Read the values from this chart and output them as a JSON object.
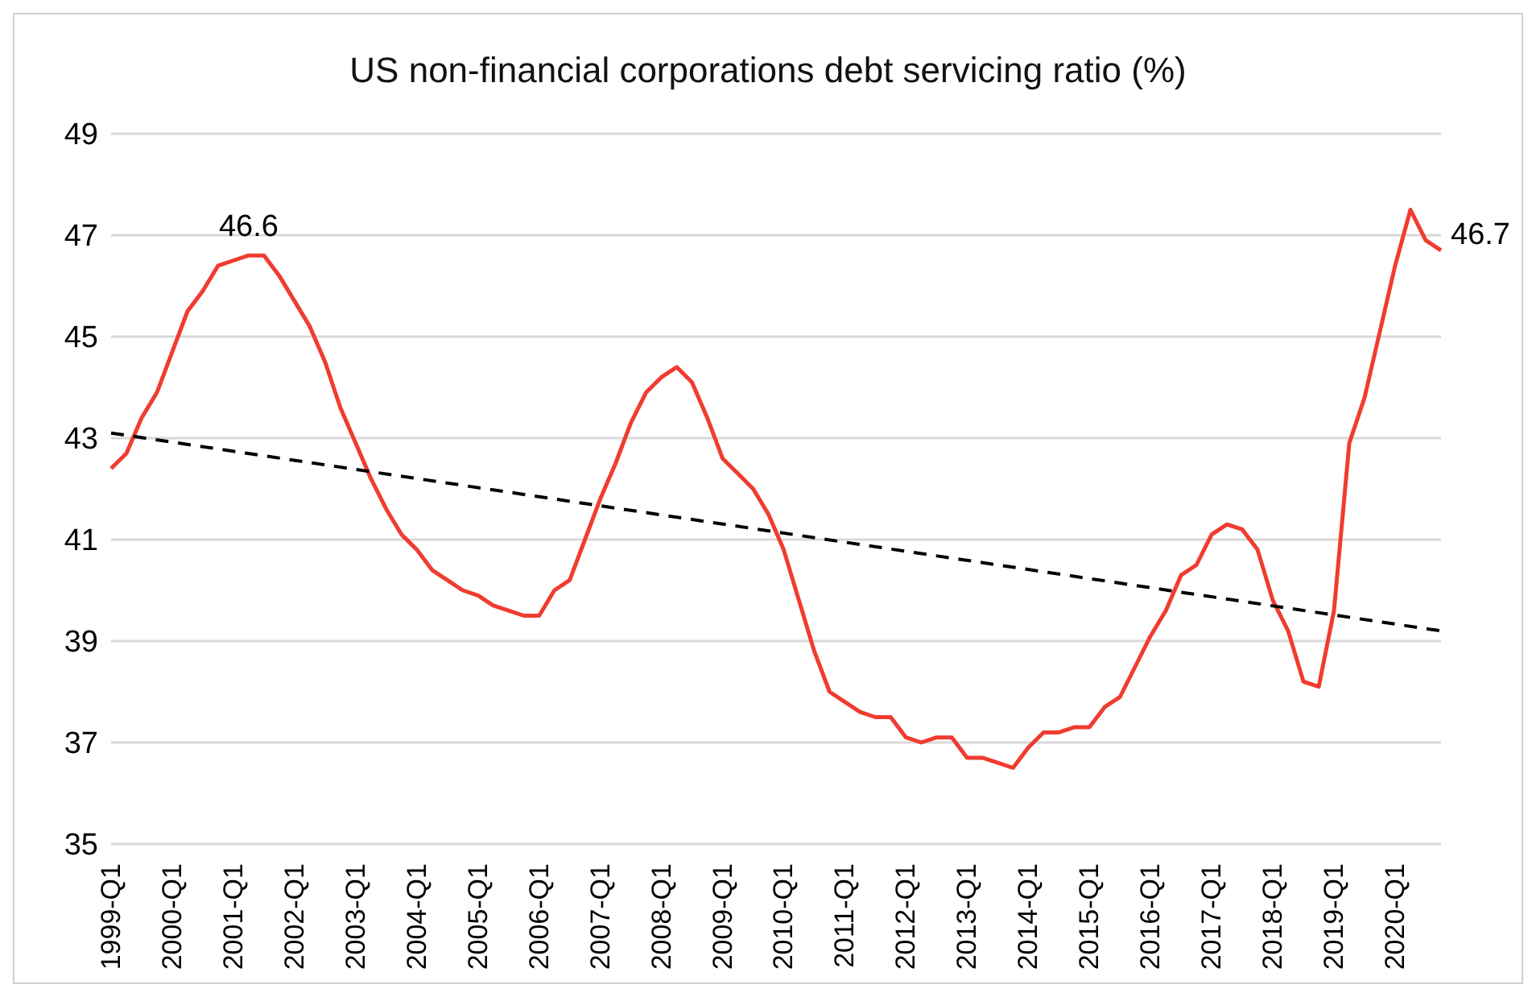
{
  "chart_data": {
    "type": "line",
    "title": "US non-financial corporations debt servicing ratio (%)",
    "categories": [
      "1999-Q1",
      null,
      null,
      null,
      "2000-Q1",
      null,
      null,
      null,
      "2001-Q1",
      null,
      null,
      null,
      "2002-Q1",
      null,
      null,
      null,
      "2003-Q1",
      null,
      null,
      null,
      "2004-Q1",
      null,
      null,
      null,
      "2005-Q1",
      null,
      null,
      null,
      "2006-Q1",
      null,
      null,
      null,
      "2007-Q1",
      null,
      null,
      null,
      "2008-Q1",
      null,
      null,
      null,
      "2009-Q1",
      null,
      null,
      null,
      "2010-Q1",
      null,
      null,
      null,
      "2011-Q1",
      null,
      null,
      null,
      "2012-Q1",
      null,
      null,
      null,
      "2013-Q1",
      null,
      null,
      null,
      "2014-Q1",
      null,
      null,
      null,
      "2015-Q1",
      null,
      null,
      null,
      "2016-Q1",
      null,
      null,
      null,
      "2017-Q1",
      null,
      null,
      null,
      "2018-Q1",
      null,
      null,
      null,
      "2019-Q1",
      null,
      null,
      null,
      "2020-Q1",
      null,
      null,
      null
    ],
    "series": [
      {
        "color": "#f03c30",
        "line_style": "solid",
        "values": [
          42.4,
          42.7,
          43.4,
          43.9,
          44.7,
          45.5,
          45.9,
          46.4,
          46.5,
          46.6,
          46.6,
          46.2,
          45.7,
          45.2,
          44.5,
          43.6,
          42.9,
          42.2,
          41.6,
          41.1,
          40.8,
          40.4,
          40.2,
          40.0,
          39.9,
          39.7,
          39.6,
          39.5,
          39.5,
          40.0,
          40.2,
          41.0,
          41.8,
          42.5,
          43.3,
          43.9,
          44.2,
          44.4,
          44.1,
          43.4,
          42.6,
          42.3,
          42.0,
          41.5,
          40.8,
          39.8,
          38.8,
          38.0,
          37.8,
          37.6,
          37.5,
          37.5,
          37.1,
          37.0,
          37.1,
          37.1,
          36.7,
          36.7,
          36.6,
          36.5,
          36.9,
          37.2,
          37.2,
          37.3,
          37.3,
          37.7,
          37.9,
          38.5,
          39.1,
          39.6,
          40.3,
          40.5,
          41.1,
          41.3,
          41.2,
          40.8,
          39.8,
          39.2,
          38.2,
          38.1,
          39.6,
          42.9,
          43.8,
          45.1,
          46.4,
          47.5,
          46.9,
          46.7
        ],
        "value_labels": [
          null,
          null,
          null,
          null,
          null,
          null,
          null,
          null,
          null,
          "46.6",
          null,
          null,
          null,
          null,
          null,
          null,
          null,
          null,
          null,
          null,
          null,
          null,
          null,
          null,
          null,
          null,
          null,
          null,
          null,
          null,
          null,
          null,
          null,
          null,
          null,
          null,
          null,
          null,
          null,
          null,
          null,
          null,
          null,
          null,
          null,
          null,
          null,
          null,
          null,
          null,
          null,
          null,
          null,
          null,
          null,
          null,
          null,
          null,
          null,
          null,
          null,
          null,
          null,
          null,
          null,
          null,
          null,
          null,
          null,
          null,
          null,
          null,
          null,
          null,
          null,
          null,
          null,
          null,
          null,
          null,
          null,
          null,
          null,
          null,
          null,
          null,
          null,
          "46.7"
        ]
      },
      {
        "type": "line",
        "color": "#000000",
        "line_style": "dashed",
        "values": [
          43.1,
          null,
          null,
          null,
          null,
          null,
          null,
          null,
          null,
          null,
          null,
          null,
          null,
          null,
          null,
          null,
          null,
          null,
          null,
          null,
          null,
          null,
          null,
          null,
          null,
          null,
          null,
          null,
          null,
          null,
          null,
          null,
          null,
          null,
          null,
          null,
          null,
          null,
          null,
          null,
          null,
          null,
          null,
          null,
          null,
          null,
          null,
          null,
          null,
          null,
          null,
          null,
          null,
          null,
          null,
          null,
          null,
          null,
          null,
          null,
          null,
          null,
          null,
          null,
          null,
          null,
          null,
          null,
          null,
          null,
          null,
          null,
          null,
          null,
          null,
          null,
          null,
          null,
          null,
          null,
          null,
          null,
          null,
          null,
          null,
          null,
          null,
          39.2
        ]
      }
    ],
    "ylim": [
      35,
      49
    ],
    "yticks": [
      35,
      37,
      39,
      41,
      43,
      45,
      47,
      49
    ],
    "grid": "y",
    "marker": "none"
  }
}
